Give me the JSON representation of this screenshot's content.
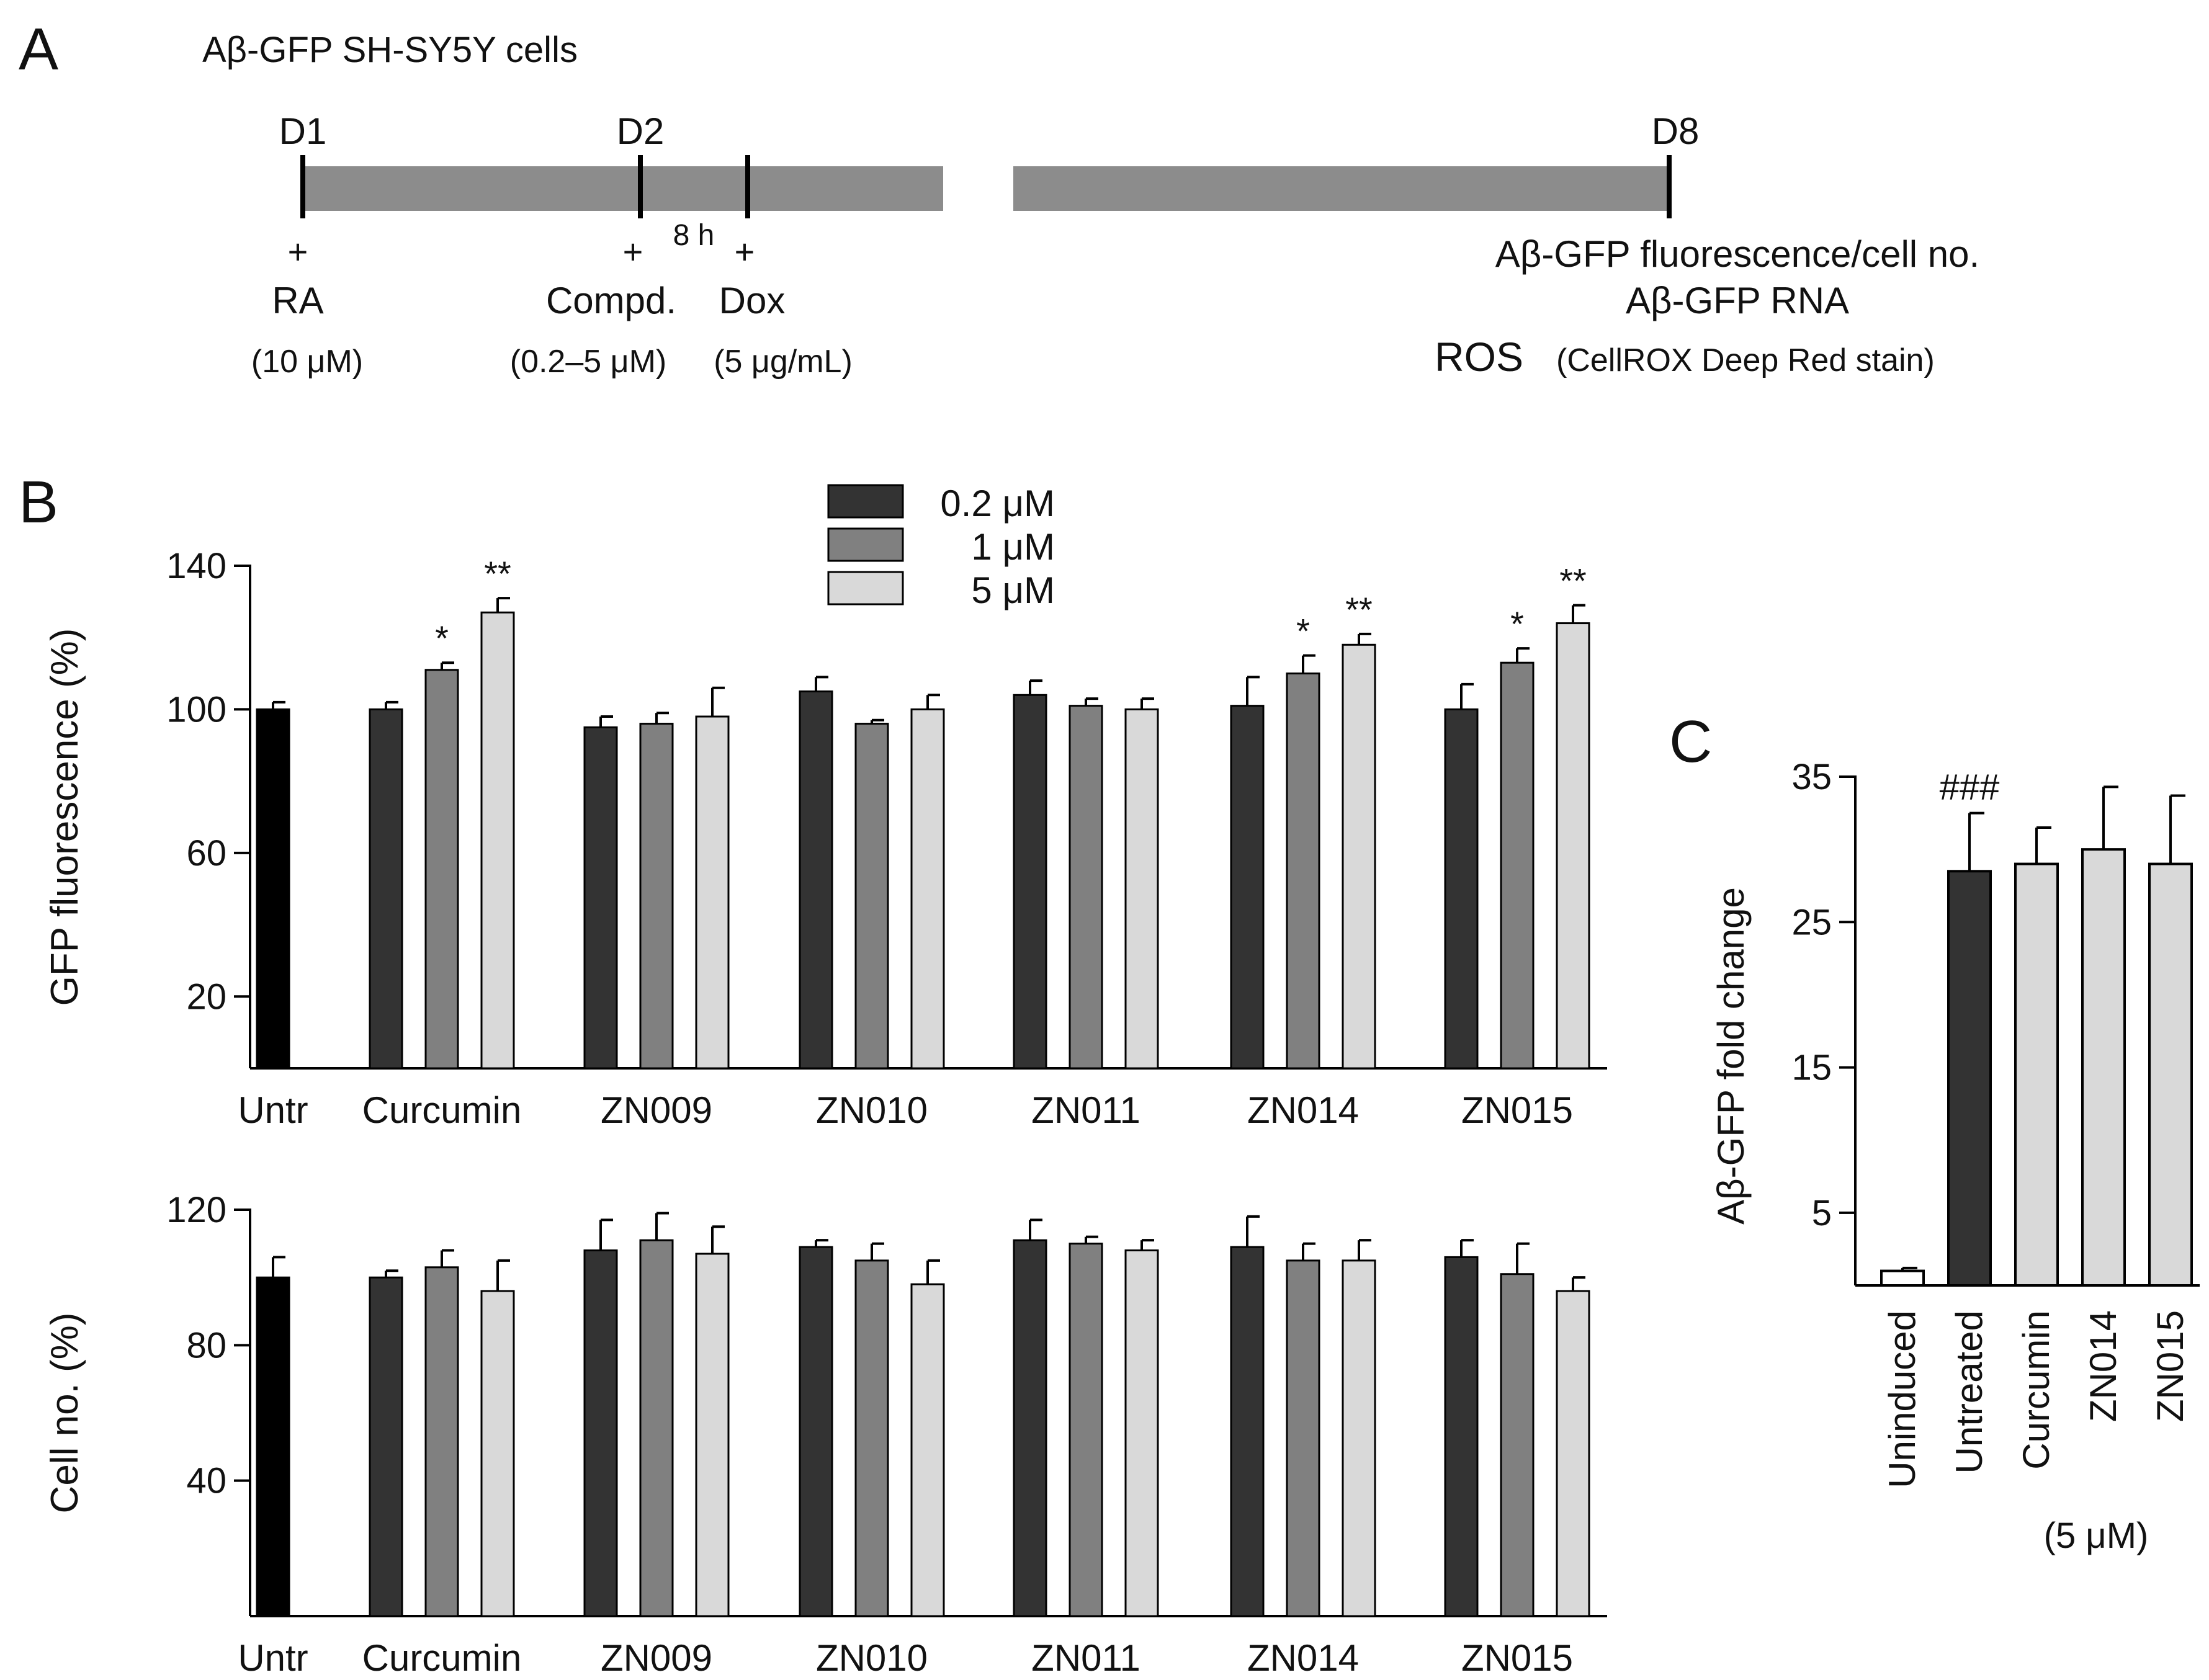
{
  "panel_labels": {
    "a": "A",
    "b": "B",
    "c": "C"
  },
  "timeline": {
    "title": "Aβ-GFP SH-SY5Y cells",
    "days": [
      "D1",
      "D2",
      "D8"
    ],
    "interval_label": "8 h",
    "plus": "+",
    "treatments": [
      {
        "name": "RA",
        "conc": "(10 μM)"
      },
      {
        "name": "Compd.",
        "conc": "(0.2–5 μM)"
      },
      {
        "name": "Dox",
        "conc": "(5 μg/mL)"
      }
    ],
    "readouts": [
      "Aβ-GFP fluorescence/cell no.",
      "Aβ-GFP RNA",
      "ROS"
    ],
    "ros_note": "(CellROX  Deep Red stain)",
    "colors": {
      "bar": "#8c8c8c",
      "tick": "#000000"
    }
  },
  "legend": [
    {
      "label": "0.2 μM",
      "color": "#333333"
    },
    {
      "label": "1 μM",
      "color": "#808080"
    },
    {
      "label": "5 μM",
      "color": "#d9d9d9"
    }
  ],
  "chart_data": [
    {
      "id": "B-top",
      "type": "bar",
      "ylabel": "GFP fluorescence (%)",
      "ylim": [
        0,
        140
      ],
      "yticks": [
        20,
        60,
        100,
        140
      ],
      "categories": [
        "Untr",
        "Curcumin",
        "ZN009",
        "ZN010",
        "ZN011",
        "ZN014",
        "ZN015"
      ],
      "series": [
        {
          "name": "Untr",
          "values": [
            100,
            null,
            null,
            null,
            null,
            null,
            null
          ],
          "errors": [
            2,
            null,
            null,
            null,
            null,
            null,
            null
          ]
        },
        {
          "name": "0.2 μM",
          "values": [
            null,
            100,
            95,
            105,
            104,
            101,
            100
          ],
          "errors": [
            null,
            2,
            3,
            4,
            4,
            8,
            7
          ]
        },
        {
          "name": "1 μM",
          "values": [
            null,
            111,
            96,
            96,
            101,
            110,
            113
          ],
          "errors": [
            null,
            2,
            3,
            1,
            2,
            5,
            4
          ]
        },
        {
          "name": "5 μM",
          "values": [
            null,
            127,
            98,
            100,
            100,
            118,
            124
          ],
          "errors": [
            null,
            4,
            8,
            4,
            3,
            3,
            5
          ]
        }
      ],
      "annotations": [
        {
          "category": "Curcumin",
          "series": "1 μM",
          "text": "*"
        },
        {
          "category": "Curcumin",
          "series": "5 μM",
          "text": "**"
        },
        {
          "category": "ZN014",
          "series": "1 μM",
          "text": "*"
        },
        {
          "category": "ZN014",
          "series": "5 μM",
          "text": "**"
        },
        {
          "category": "ZN015",
          "series": "1 μM",
          "text": "*"
        },
        {
          "category": "ZN015",
          "series": "5 μM",
          "text": "**"
        }
      ]
    },
    {
      "id": "B-bottom",
      "type": "bar",
      "ylabel": "Cell no. (%)",
      "ylim": [
        0,
        120
      ],
      "yticks": [
        40,
        80,
        120
      ],
      "categories": [
        "Untr",
        "Curcumin",
        "ZN009",
        "ZN010",
        "ZN011",
        "ZN014",
        "ZN015"
      ],
      "series": [
        {
          "name": "Untr",
          "values": [
            100,
            null,
            null,
            null,
            null,
            null,
            null
          ],
          "errors": [
            6,
            null,
            null,
            null,
            null,
            null,
            null
          ]
        },
        {
          "name": "0.2 μM",
          "values": [
            null,
            100,
            108,
            109,
            111,
            109,
            106
          ],
          "errors": [
            null,
            2,
            9,
            2,
            6,
            9,
            5
          ]
        },
        {
          "name": "1 μM",
          "values": [
            null,
            103,
            111,
            105,
            110,
            105,
            101
          ],
          "errors": [
            null,
            5,
            8,
            5,
            2,
            5,
            9
          ]
        },
        {
          "name": "5 μM",
          "values": [
            null,
            96,
            107,
            98,
            108,
            105,
            96
          ],
          "errors": [
            null,
            9,
            8,
            7,
            3,
            6,
            4
          ]
        }
      ],
      "annotations": []
    },
    {
      "id": "C",
      "type": "bar",
      "ylabel": "Aβ-GFP fold change",
      "ylim": [
        0,
        35
      ],
      "yticks": [
        5,
        15,
        25,
        35
      ],
      "categories": [
        "Uninduced",
        "Untreated",
        "Curcumin",
        "ZN014",
        "ZN015"
      ],
      "xlabel": "(5 μM)",
      "values": [
        1,
        28.5,
        29,
        30,
        29
      ],
      "errors": [
        0.2,
        4,
        2.5,
        4.3,
        4.7
      ],
      "bar_colors": [
        "#ffffff",
        "#333333",
        "#d9d9d9",
        "#d9d9d9",
        "#d9d9d9"
      ],
      "annotations": [
        {
          "category": "Untreated",
          "text": "###"
        }
      ]
    }
  ]
}
